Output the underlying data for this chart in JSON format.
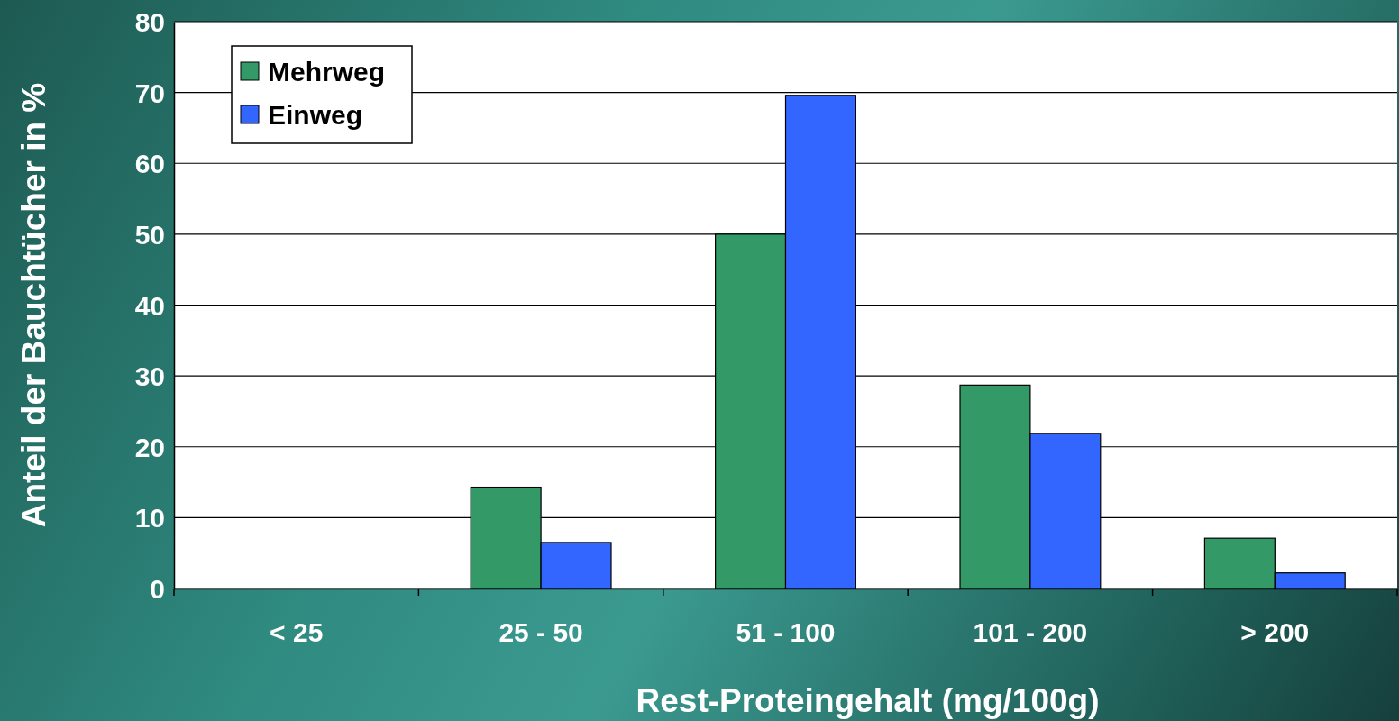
{
  "chart_data": {
    "type": "bar",
    "xlabel": "Rest-Proteingehalt (mg/100g)",
    "ylabel": "Anteil der Bauchtücher in %",
    "categories": [
      "< 25",
      "25 - 50",
      "51 - 100",
      "101 - 200",
      "> 200"
    ],
    "series": [
      {
        "name": "Mehrweg",
        "color": "#339966",
        "values": [
          0,
          14.3,
          50,
          28.7,
          7.1
        ]
      },
      {
        "name": "Einweg",
        "color": "#3366ff",
        "values": [
          0,
          6.5,
          69.6,
          21.9,
          2.2
        ]
      }
    ],
    "ylim": [
      0,
      80
    ],
    "yticks": [
      0,
      10,
      20,
      30,
      40,
      50,
      60,
      70,
      80
    ],
    "grid": "y",
    "legend": "top left"
  }
}
